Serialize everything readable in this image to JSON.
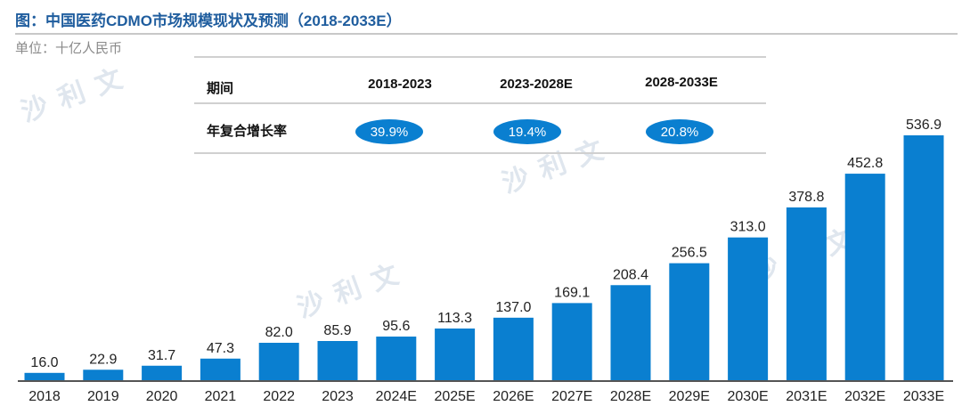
{
  "header": {
    "title": "图：中国医药CDMO市场规模现状及预测（2018-2033E）",
    "unit": "单位：十亿人民币"
  },
  "cagr_table": {
    "row_header": "期间",
    "row_label": "年复合增长率",
    "periods": [
      "2018-2023",
      "2023-2028E",
      "2028-2033E"
    ],
    "rates": [
      "39.9%",
      "19.4%",
      "20.8%"
    ]
  },
  "watermark": {
    "text": "沙利文"
  },
  "colors": {
    "bar": "#0a7fd0",
    "title": "#1f5d9e",
    "ellipse": "#0a7fd0"
  },
  "chart_data": {
    "type": "bar",
    "title": "中国医药CDMO市场规模现状及预测（2018-2033E）",
    "ylabel": "十亿人民币",
    "xlabel": "",
    "ylim": [
      0,
      560
    ],
    "grid": false,
    "categories": [
      "2018",
      "2019",
      "2020",
      "2021",
      "2022",
      "2023",
      "2024E",
      "2025E",
      "2026E",
      "2027E",
      "2028E",
      "2029E",
      "2030E",
      "2031E",
      "2032E",
      "2033E"
    ],
    "values": [
      16.0,
      22.9,
      31.7,
      47.3,
      82.0,
      85.9,
      95.6,
      113.3,
      137.0,
      169.1,
      208.4,
      256.5,
      313.0,
      378.8,
      452.8,
      536.9
    ],
    "labels": [
      "16.0",
      "22.9",
      "31.7",
      "47.3",
      "82.0",
      "85.9",
      "95.6",
      "113.3",
      "137.0",
      "169.1",
      "208.4",
      "256.5",
      "313.0",
      "378.8",
      "452.8",
      "536.9"
    ]
  }
}
